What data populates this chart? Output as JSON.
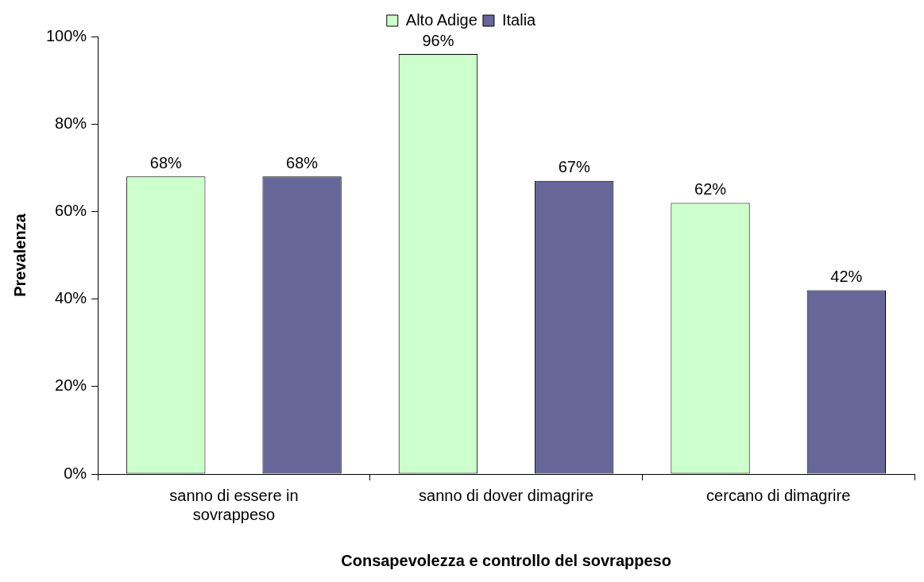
{
  "chart_data": {
    "type": "bar",
    "xlabel": "Consapevolezza e controllo del sovrappeso",
    "ylabel": "Prevalenza",
    "categories": [
      "sanno di essere in sovrappeso",
      "sanno di dover dimagrire",
      "cercano di dimagrire"
    ],
    "series": [
      {
        "name": "Alto Adige",
        "color": "#ccffcc",
        "values": [
          68,
          96,
          62
        ],
        "value_labels": [
          "68%",
          "96%",
          "62%"
        ]
      },
      {
        "name": "Italia",
        "color": "#666699",
        "values": [
          68,
          67,
          42
        ],
        "value_labels": [
          "68%",
          "67%",
          "42%"
        ]
      }
    ],
    "ylim": [
      0,
      100
    ],
    "yticks": [
      {
        "value": 0,
        "label": "0%"
      },
      {
        "value": 20,
        "label": "20%"
      },
      {
        "value": 40,
        "label": "40%"
      },
      {
        "value": 60,
        "label": "60%"
      },
      {
        "value": 80,
        "label": "80%"
      },
      {
        "value": 100,
        "label": "100%"
      }
    ],
    "grid": false,
    "legend": "top"
  }
}
